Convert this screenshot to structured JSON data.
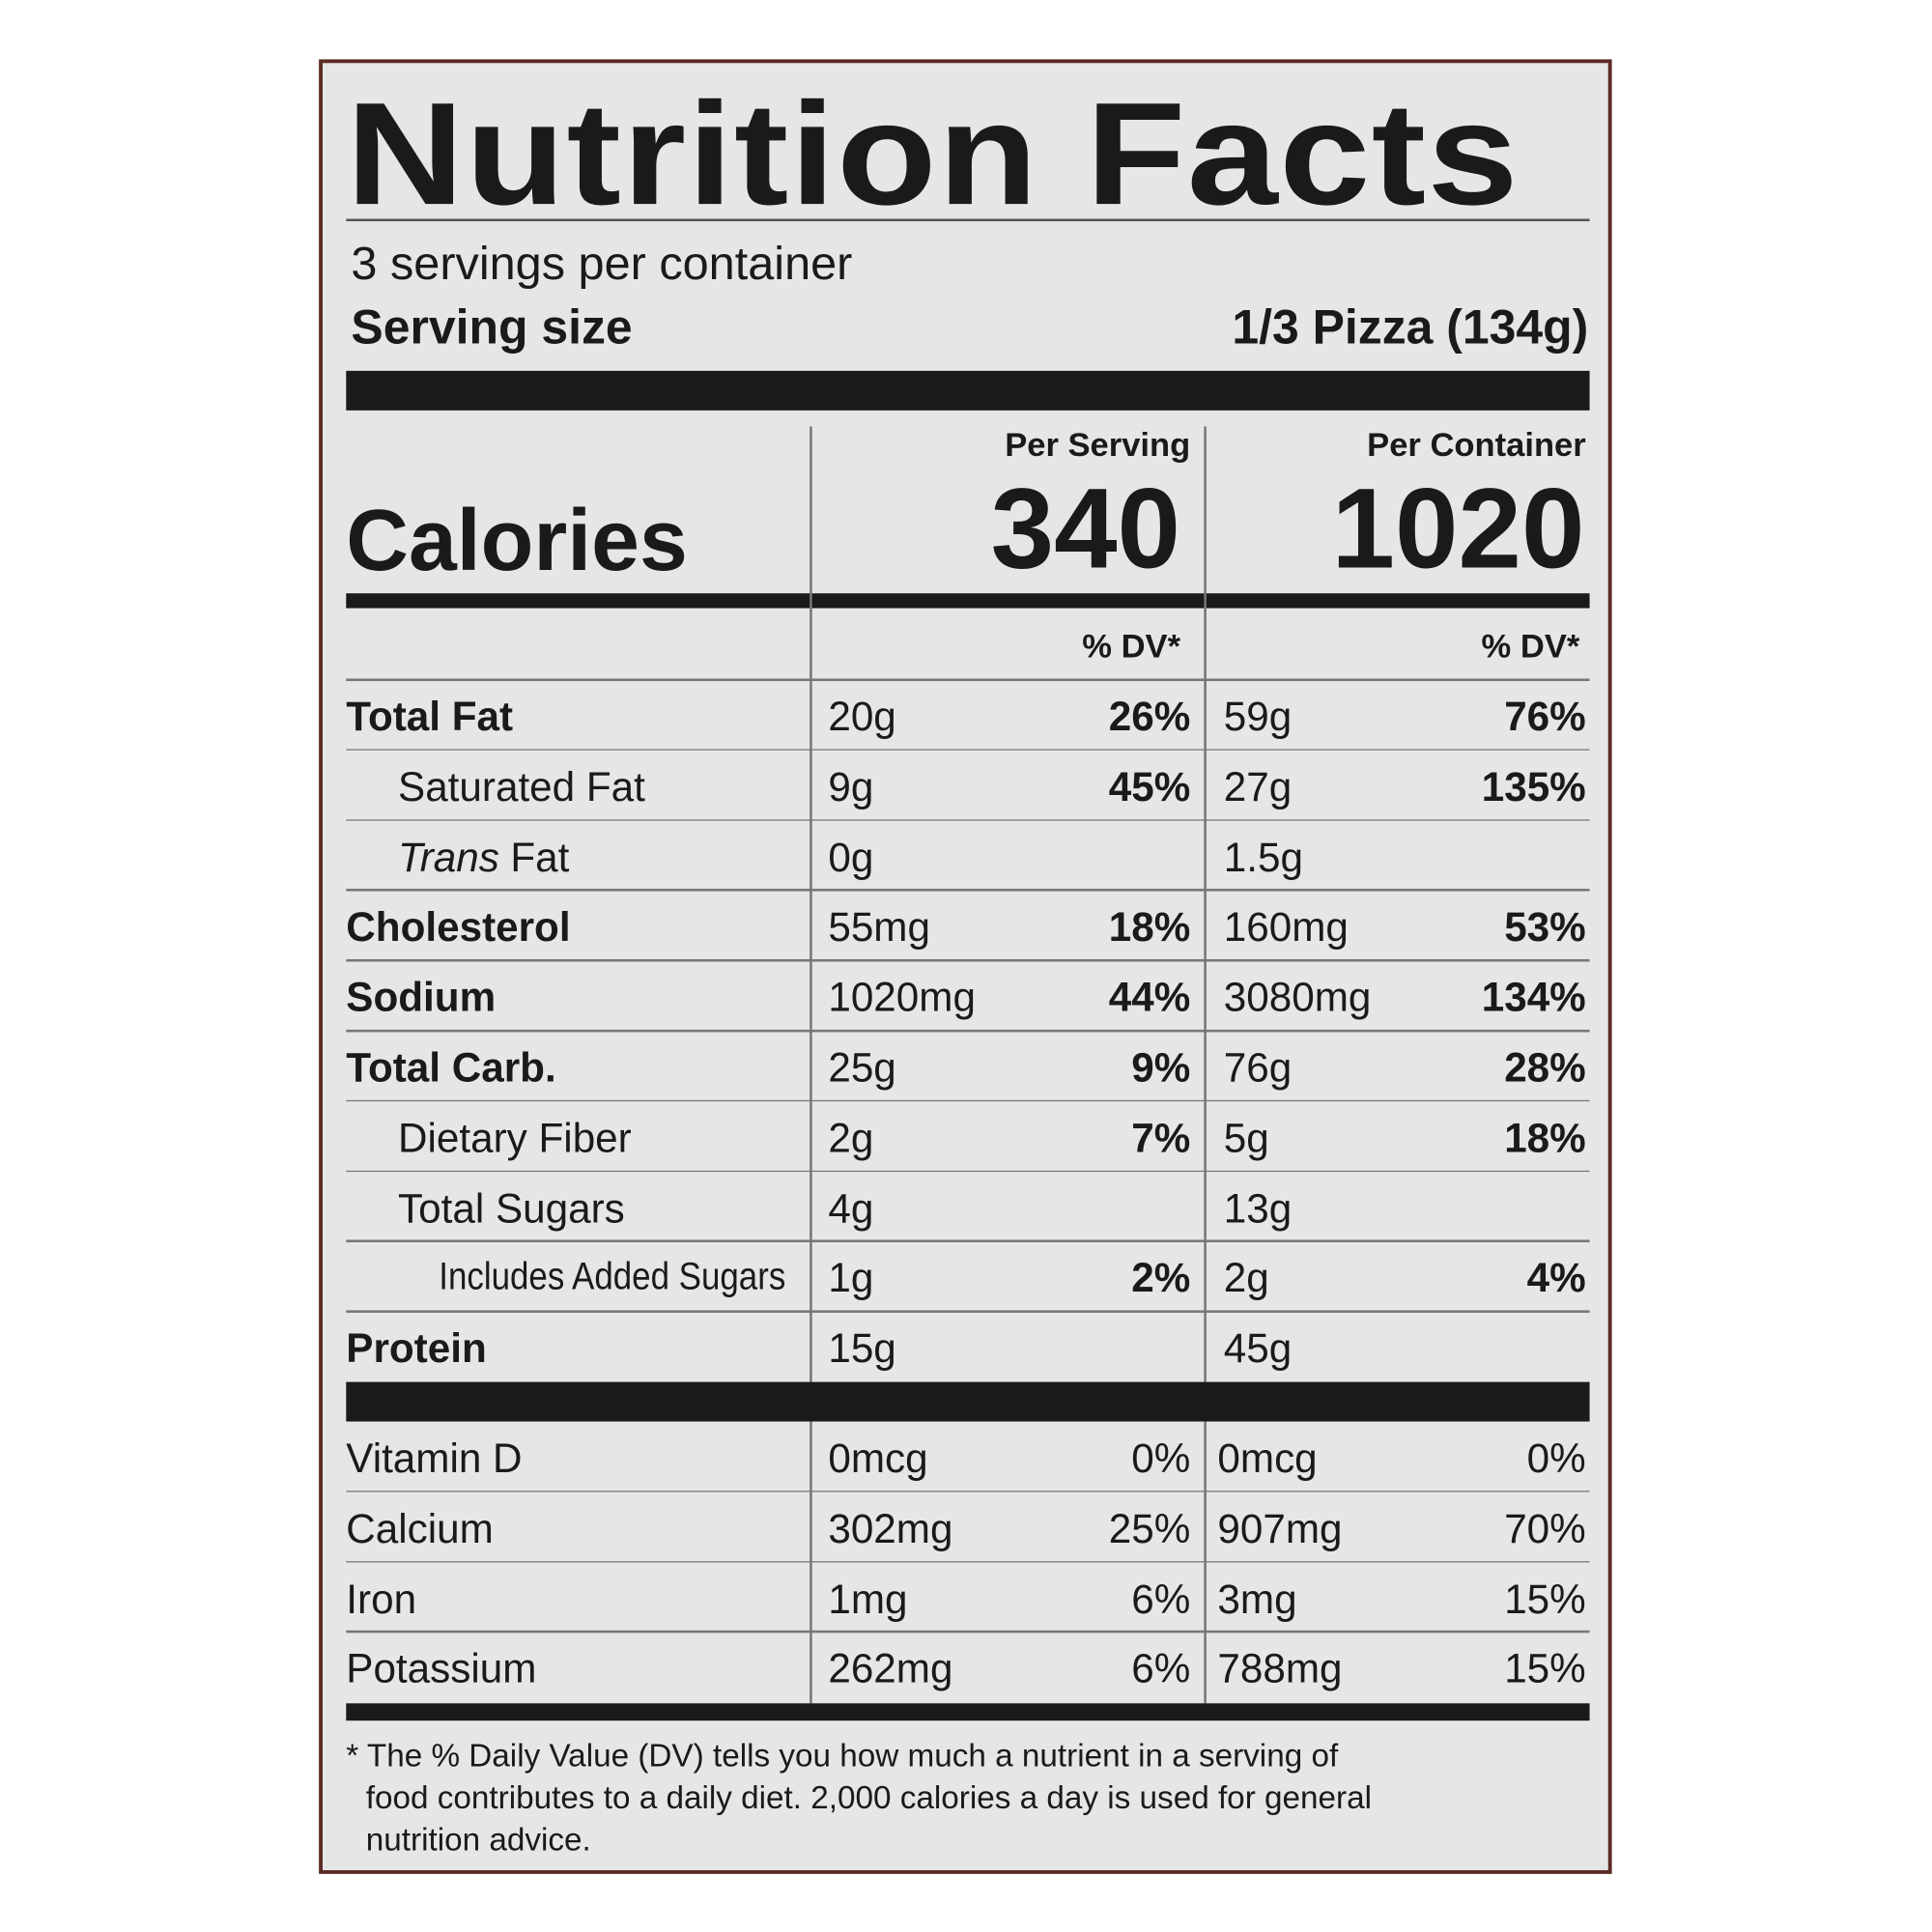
{
  "header": {
    "title": "Nutrition Facts",
    "servings": "3 servings per container",
    "serving_size_label": "Serving size",
    "serving_size_value": "1/3 Pizza (134g)"
  },
  "calories": {
    "per_serving_header": "Per Serving",
    "per_container_header": "Per Container",
    "label": "Calories",
    "per_serving": "340",
    "per_container": "1020"
  },
  "dv_header": {
    "per_serving": "% DV*",
    "per_container": "% DV*"
  },
  "nutrients": [
    {
      "label": "Total Fat",
      "bold": true,
      "indent": 0,
      "ps_amount": "20g",
      "ps_dv": "26%",
      "pc_amount": "59g",
      "pc_dv": "76%"
    },
    {
      "label": "Saturated Fat",
      "bold": false,
      "indent": 1,
      "ps_amount": "9g",
      "ps_dv": "45%",
      "pc_amount": "27g",
      "pc_dv": "135%"
    },
    {
      "label_italic": "Trans",
      "label": "Fat",
      "bold": false,
      "indent": 1,
      "ps_amount": "0g",
      "ps_dv": null,
      "pc_amount": "1.5g",
      "pc_dv": null
    },
    {
      "label": "Cholesterol",
      "bold": true,
      "indent": 0,
      "ps_amount": "55mg",
      "ps_dv": "18%",
      "pc_amount": "160mg",
      "pc_dv": "53%"
    },
    {
      "label": "Sodium",
      "bold": true,
      "indent": 0,
      "ps_amount": "1020mg",
      "ps_dv": "44%",
      "pc_amount": "3080mg",
      "pc_dv": "134%"
    },
    {
      "label": "Total Carb.",
      "bold": true,
      "indent": 0,
      "ps_amount": "25g",
      "ps_dv": "9%",
      "pc_amount": "76g",
      "pc_dv": "28%"
    },
    {
      "label": "Dietary Fiber",
      "bold": false,
      "indent": 1,
      "ps_amount": "2g",
      "ps_dv": "7%",
      "pc_amount": "5g",
      "pc_dv": "18%"
    },
    {
      "label": "Total Sugars",
      "bold": false,
      "indent": 1,
      "ps_amount": "4g",
      "ps_dv": null,
      "pc_amount": "13g",
      "pc_dv": null
    },
    {
      "label": "Includes Added Sugars",
      "bold": false,
      "indent": 2,
      "ps_amount": "1g",
      "ps_dv": "2%",
      "pc_amount": "2g",
      "pc_dv": "4%"
    },
    {
      "label": "Protein",
      "bold": true,
      "indent": 0,
      "ps_amount": "15g",
      "ps_dv": null,
      "pc_amount": "45g",
      "pc_dv": null
    }
  ],
  "vitamins": [
    {
      "label": "Vitamin D",
      "ps_amount": "0mcg",
      "ps_dv": "0%",
      "pc_amount": "0mcg",
      "pc_dv": "0%"
    },
    {
      "label": "Calcium",
      "ps_amount": "302mg",
      "ps_dv": "25%",
      "pc_amount": "907mg",
      "pc_dv": "70%"
    },
    {
      "label": "Iron",
      "ps_amount": "1mg",
      "ps_dv": "6%",
      "pc_amount": "3mg",
      "pc_dv": "15%"
    },
    {
      "label": "Potassium",
      "ps_amount": "262mg",
      "ps_dv": "6%",
      "pc_amount": "788mg",
      "pc_dv": "15%"
    }
  ],
  "footnote": [
    "* The % Daily Value (DV) tells you how much a nutrient in a serving of",
    "food contributes to a daily diet. 2,000 calories a day is used for general",
    "nutrition advice."
  ]
}
